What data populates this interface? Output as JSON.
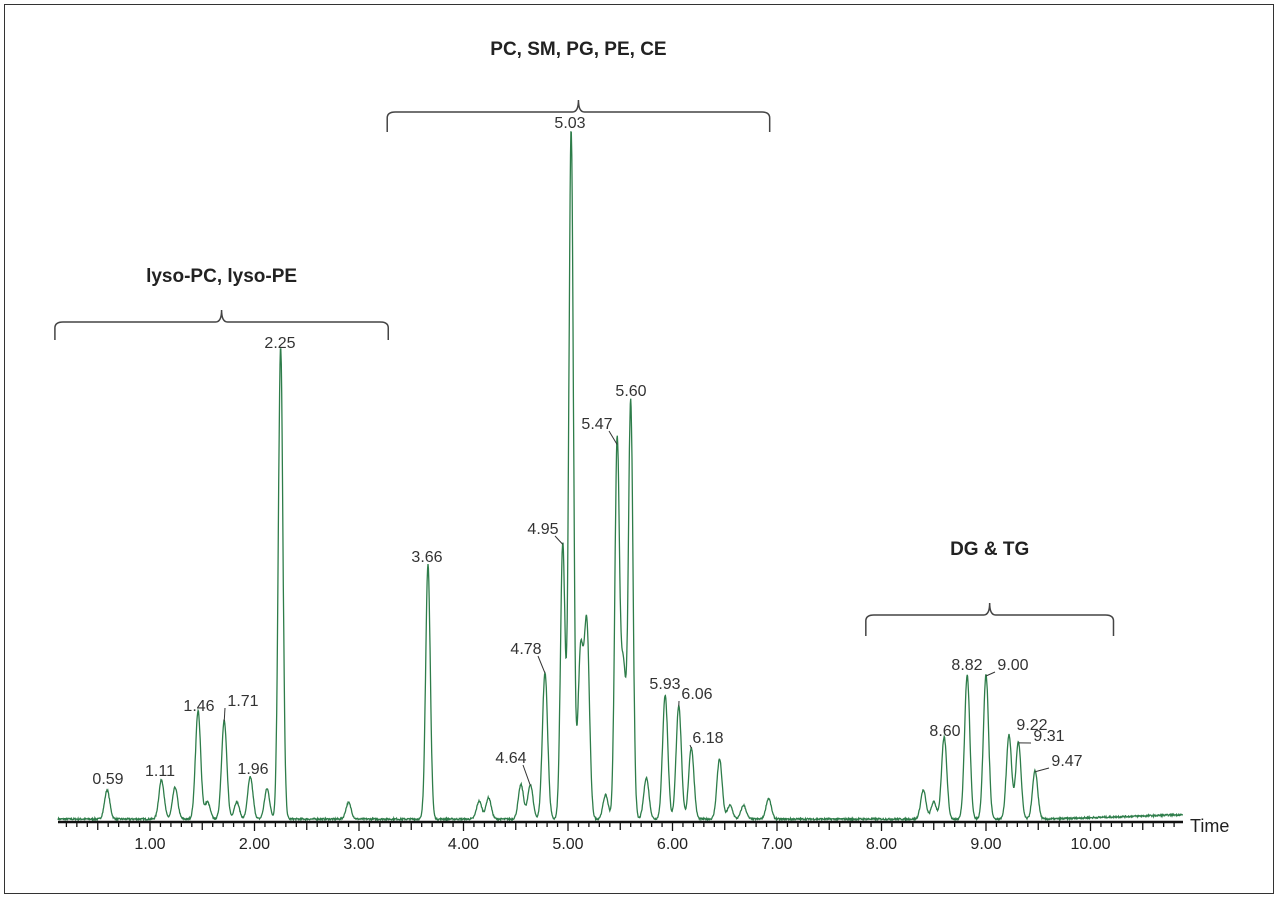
{
  "chart_data": {
    "type": "line",
    "xlabel": "Time",
    "ylabel": "",
    "xlim": [
      0.12,
      10.88
    ],
    "x_ticks": [
      "1.00",
      "2.00",
      "3.00",
      "4.00",
      "5.00",
      "6.00",
      "7.00",
      "8.00",
      "9.00",
      "10.00"
    ],
    "y_axis_shown": false,
    "grid": false,
    "line_color": "#2e7d4a",
    "labeled_peaks": [
      {
        "label": "0.59",
        "time": 0.59,
        "intensity": 4.2
      },
      {
        "label": "1.11",
        "time": 1.11,
        "intensity": 5.7
      },
      {
        "label": "1.46",
        "time": 1.46,
        "intensity": 15.7
      },
      {
        "label": "1.71",
        "time": 1.71,
        "intensity": 14.3
      },
      {
        "label": "1.96",
        "time": 1.96,
        "intensity": 6.1
      },
      {
        "label": "2.25",
        "time": 2.25,
        "intensity": 68.5
      },
      {
        "label": "3.66",
        "time": 3.66,
        "intensity": 36.9
      },
      {
        "label": "4.64",
        "time": 4.64,
        "intensity": 5.0
      },
      {
        "label": "4.78",
        "time": 4.78,
        "intensity": 21.3
      },
      {
        "label": "4.95",
        "time": 4.95,
        "intensity": 40.0
      },
      {
        "label": "5.03",
        "time": 5.03,
        "intensity": 100
      },
      {
        "label": "5.47",
        "time": 5.47,
        "intensity": 54.5
      },
      {
        "label": "5.60",
        "time": 5.6,
        "intensity": 60.5
      },
      {
        "label": "5.93",
        "time": 5.93,
        "intensity": 18.0
      },
      {
        "label": "6.06",
        "time": 6.06,
        "intensity": 16.5
      },
      {
        "label": "6.18",
        "time": 6.18,
        "intensity": 10.4
      },
      {
        "label": "8.60",
        "time": 8.6,
        "intensity": 11.9
      },
      {
        "label": "8.82",
        "time": 8.82,
        "intensity": 20.9
      },
      {
        "label": "9.00",
        "time": 9.0,
        "intensity": 20.9
      },
      {
        "label": "9.22",
        "time": 9.22,
        "intensity": 12.2
      },
      {
        "label": "9.31",
        "time": 9.31,
        "intensity": 11.2
      },
      {
        "label": "9.47",
        "time": 9.47,
        "intensity": 7.0
      }
    ],
    "unlabeled_peaks": [
      {
        "time": 1.24,
        "intensity": 4.6
      },
      {
        "time": 1.55,
        "intensity": 2.5
      },
      {
        "time": 1.83,
        "intensity": 2.5
      },
      {
        "time": 2.12,
        "intensity": 4.4
      },
      {
        "time": 2.9,
        "intensity": 2.4
      },
      {
        "time": 4.15,
        "intensity": 2.6
      },
      {
        "time": 4.24,
        "intensity": 3.1
      },
      {
        "time": 4.55,
        "intensity": 5.0
      },
      {
        "time": 5.12,
        "intensity": 24
      },
      {
        "time": 5.18,
        "intensity": 28
      },
      {
        "time": 5.36,
        "intensity": 3.5
      },
      {
        "time": 5.53,
        "intensity": 22
      },
      {
        "time": 5.75,
        "intensity": 6.0
      },
      {
        "time": 6.45,
        "intensity": 8.7
      },
      {
        "time": 6.55,
        "intensity": 2.0
      },
      {
        "time": 6.68,
        "intensity": 2.0
      },
      {
        "time": 6.92,
        "intensity": 3.0
      },
      {
        "time": 8.4,
        "intensity": 4.2
      },
      {
        "time": 8.5,
        "intensity": 2.5
      }
    ],
    "annotations": [
      {
        "text": "lyso-PC, lyso-PE",
        "range": [
          0.09,
          3.28
        ]
      },
      {
        "text": "PC, SM, PG, PE, CE",
        "range": [
          3.27,
          6.93
        ]
      },
      {
        "text": "DG & TG",
        "range": [
          7.85,
          10.22
        ]
      }
    ]
  }
}
